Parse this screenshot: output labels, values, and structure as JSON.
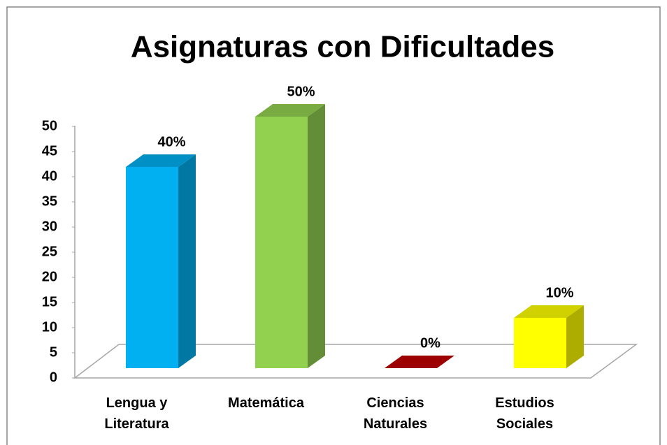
{
  "chart_data": {
    "type": "bar3d",
    "title": "Asignaturas con Dificultades",
    "categories": [
      "Lengua y Literatura",
      "Matemática",
      "Ciencias Naturales",
      "Estudios Sociales"
    ],
    "values": [
      40,
      50,
      0,
      10
    ],
    "value_labels": [
      "40%",
      "50%",
      "0%",
      "10%"
    ],
    "colors": [
      "#00b0f0",
      "#92d050",
      "#c00000",
      "#ffff00"
    ],
    "ylim": [
      0,
      50
    ],
    "yticks": [
      0,
      5,
      10,
      15,
      20,
      25,
      30,
      35,
      40,
      45,
      50
    ],
    "grid": false
  }
}
